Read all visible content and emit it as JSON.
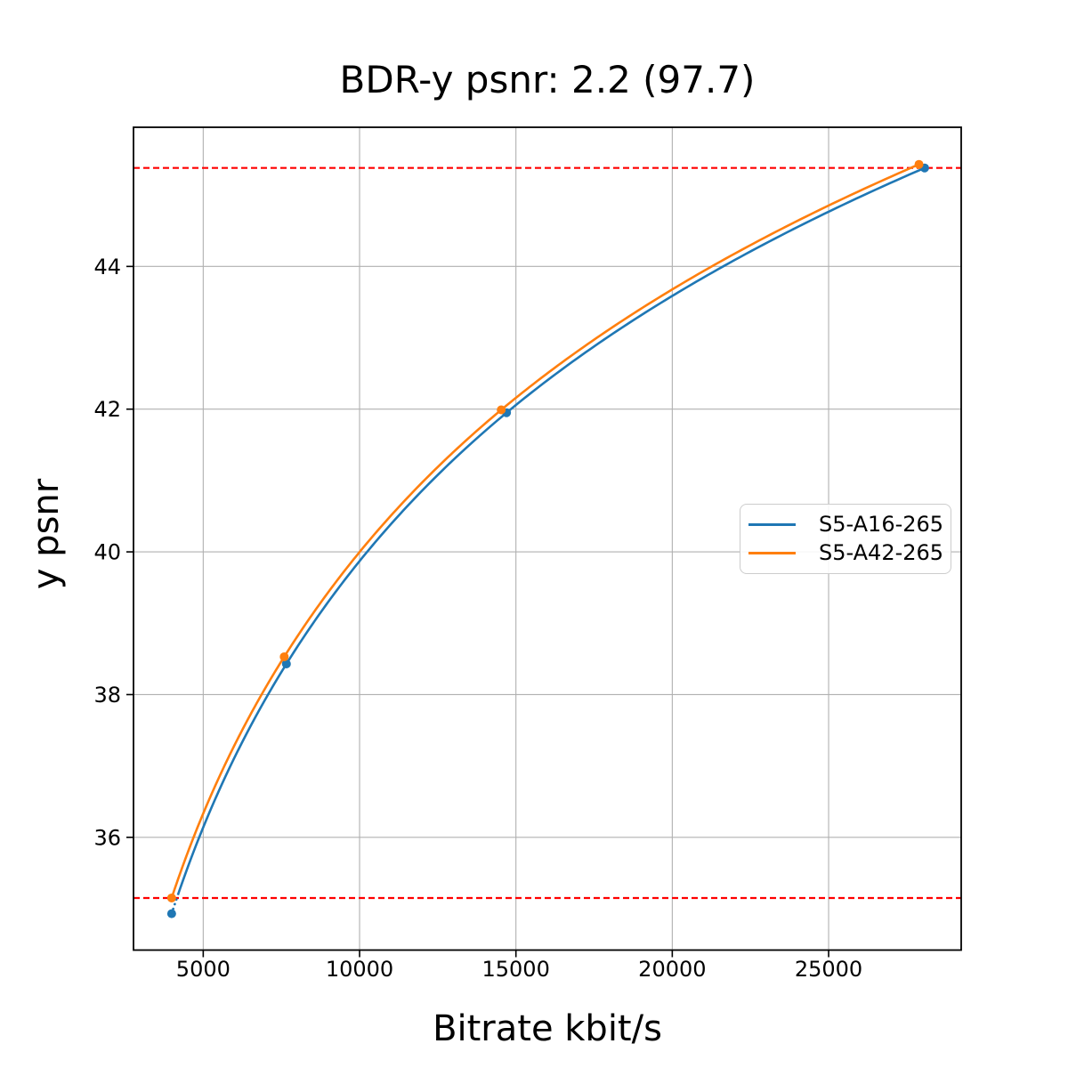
{
  "chart_data": {
    "type": "line",
    "title": "BDR-y psnr: 2.2 (97.7)",
    "xlabel": "Bitrate kbit/s",
    "ylabel": "y psnr",
    "xlim": [
      2770,
      29240
    ],
    "ylim": [
      34.42,
      45.95
    ],
    "x_ticks": [
      5000,
      10000,
      15000,
      20000,
      25000
    ],
    "x_tick_labels": [
      "5000",
      "10000",
      "15000",
      "20000",
      "25000"
    ],
    "y_ticks": [
      36,
      38,
      40,
      42,
      44
    ],
    "y_tick_labels": [
      "36",
      "38",
      "40",
      "42",
      "44"
    ],
    "grid": true,
    "legend_position": "center right",
    "interpolation": "pchip-log-x",
    "series": [
      {
        "name": "S5-A16-265",
        "color": "#1f77b4",
        "x": [
          3990,
          7660,
          14700,
          28070
        ],
        "y": [
          34.93,
          38.43,
          41.95,
          45.38
        ],
        "dotted_below_y": 35.15
      },
      {
        "name": "S5-A42-265",
        "color": "#ff7f0e",
        "x": [
          3990,
          7590,
          14530,
          27890
        ],
        "y": [
          35.15,
          38.53,
          41.99,
          45.43
        ]
      }
    ],
    "hlines": [
      {
        "y": 45.38,
        "color": "#ff0000",
        "style": "dashed"
      },
      {
        "y": 35.15,
        "color": "#ff0000",
        "style": "dashed"
      }
    ],
    "style": {
      "grid_color": "#b0b0b0",
      "spine_color": "#000000",
      "text_color": "#000000",
      "legend_border_color": "#cccccc"
    }
  }
}
